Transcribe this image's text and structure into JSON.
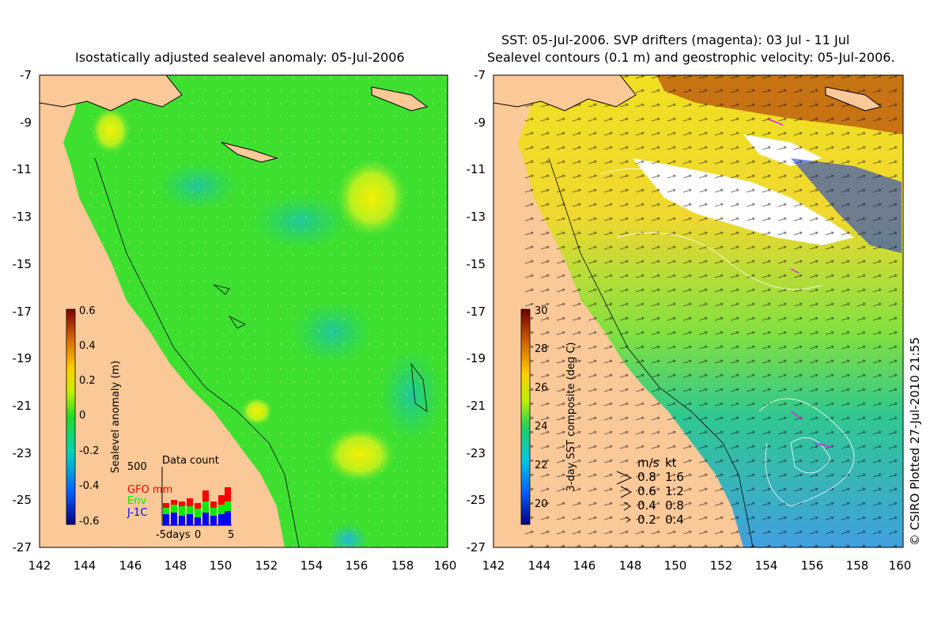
{
  "left_panel": {
    "title": "Isostatically adjusted sealevel anomaly: 05-Jul-2006",
    "colorbar": {
      "label": "Sealevel anomaly (m)",
      "ticks": [
        "0.6",
        "0.4",
        "0.2",
        "0",
        "-0.2",
        "-0.4",
        "-0.6"
      ]
    },
    "data_count": {
      "title": "Data count",
      "max_label": "500",
      "series": [
        {
          "name": "GFO mm",
          "color": "#ff0000"
        },
        {
          "name": "Env",
          "color": "#00ee00"
        },
        {
          "name": "J-1C",
          "color": "#0000ff"
        }
      ],
      "x_labels": [
        "-5days",
        "0",
        "5"
      ]
    }
  },
  "right_panel": {
    "title_line1": "SST: 05-Jul-2006. SVP drifters (magenta): 03 Jul - 11 Jul",
    "title_line2": "Sealevel contours (0.1 m) and geostrophic velocity: 05-Jul-2006.",
    "colorbar": {
      "label": "3-day SST composite (deg C)",
      "ticks": [
        "30",
        "28",
        "26",
        "24",
        "22",
        "20"
      ]
    },
    "velocity_legend": {
      "header_ms": "m/s",
      "header_kt": "kt",
      "rows": [
        {
          "ms": "0.8",
          "kt": "1.6"
        },
        {
          "ms": "0.6",
          "kt": "1.2"
        },
        {
          "ms": "0.4",
          "kt": "0.8"
        },
        {
          "ms": "0.2",
          "kt": "0.4"
        }
      ]
    },
    "credit": "© CSIRO Plotted 27-Jul-2010 21:55"
  },
  "axes": {
    "lat_ticks": [
      "-7",
      "-9",
      "-11",
      "-13",
      "-15",
      "-17",
      "-19",
      "-21",
      "-23",
      "-25",
      "-27"
    ],
    "lon_ticks": [
      "142",
      "144",
      "146",
      "148",
      "150",
      "152",
      "154",
      "156",
      "158",
      "160"
    ]
  },
  "colors": {
    "land": "#fbc898",
    "ocean_base": "#22dd22",
    "coastline": "#000000",
    "cloud": "#ffffff"
  }
}
